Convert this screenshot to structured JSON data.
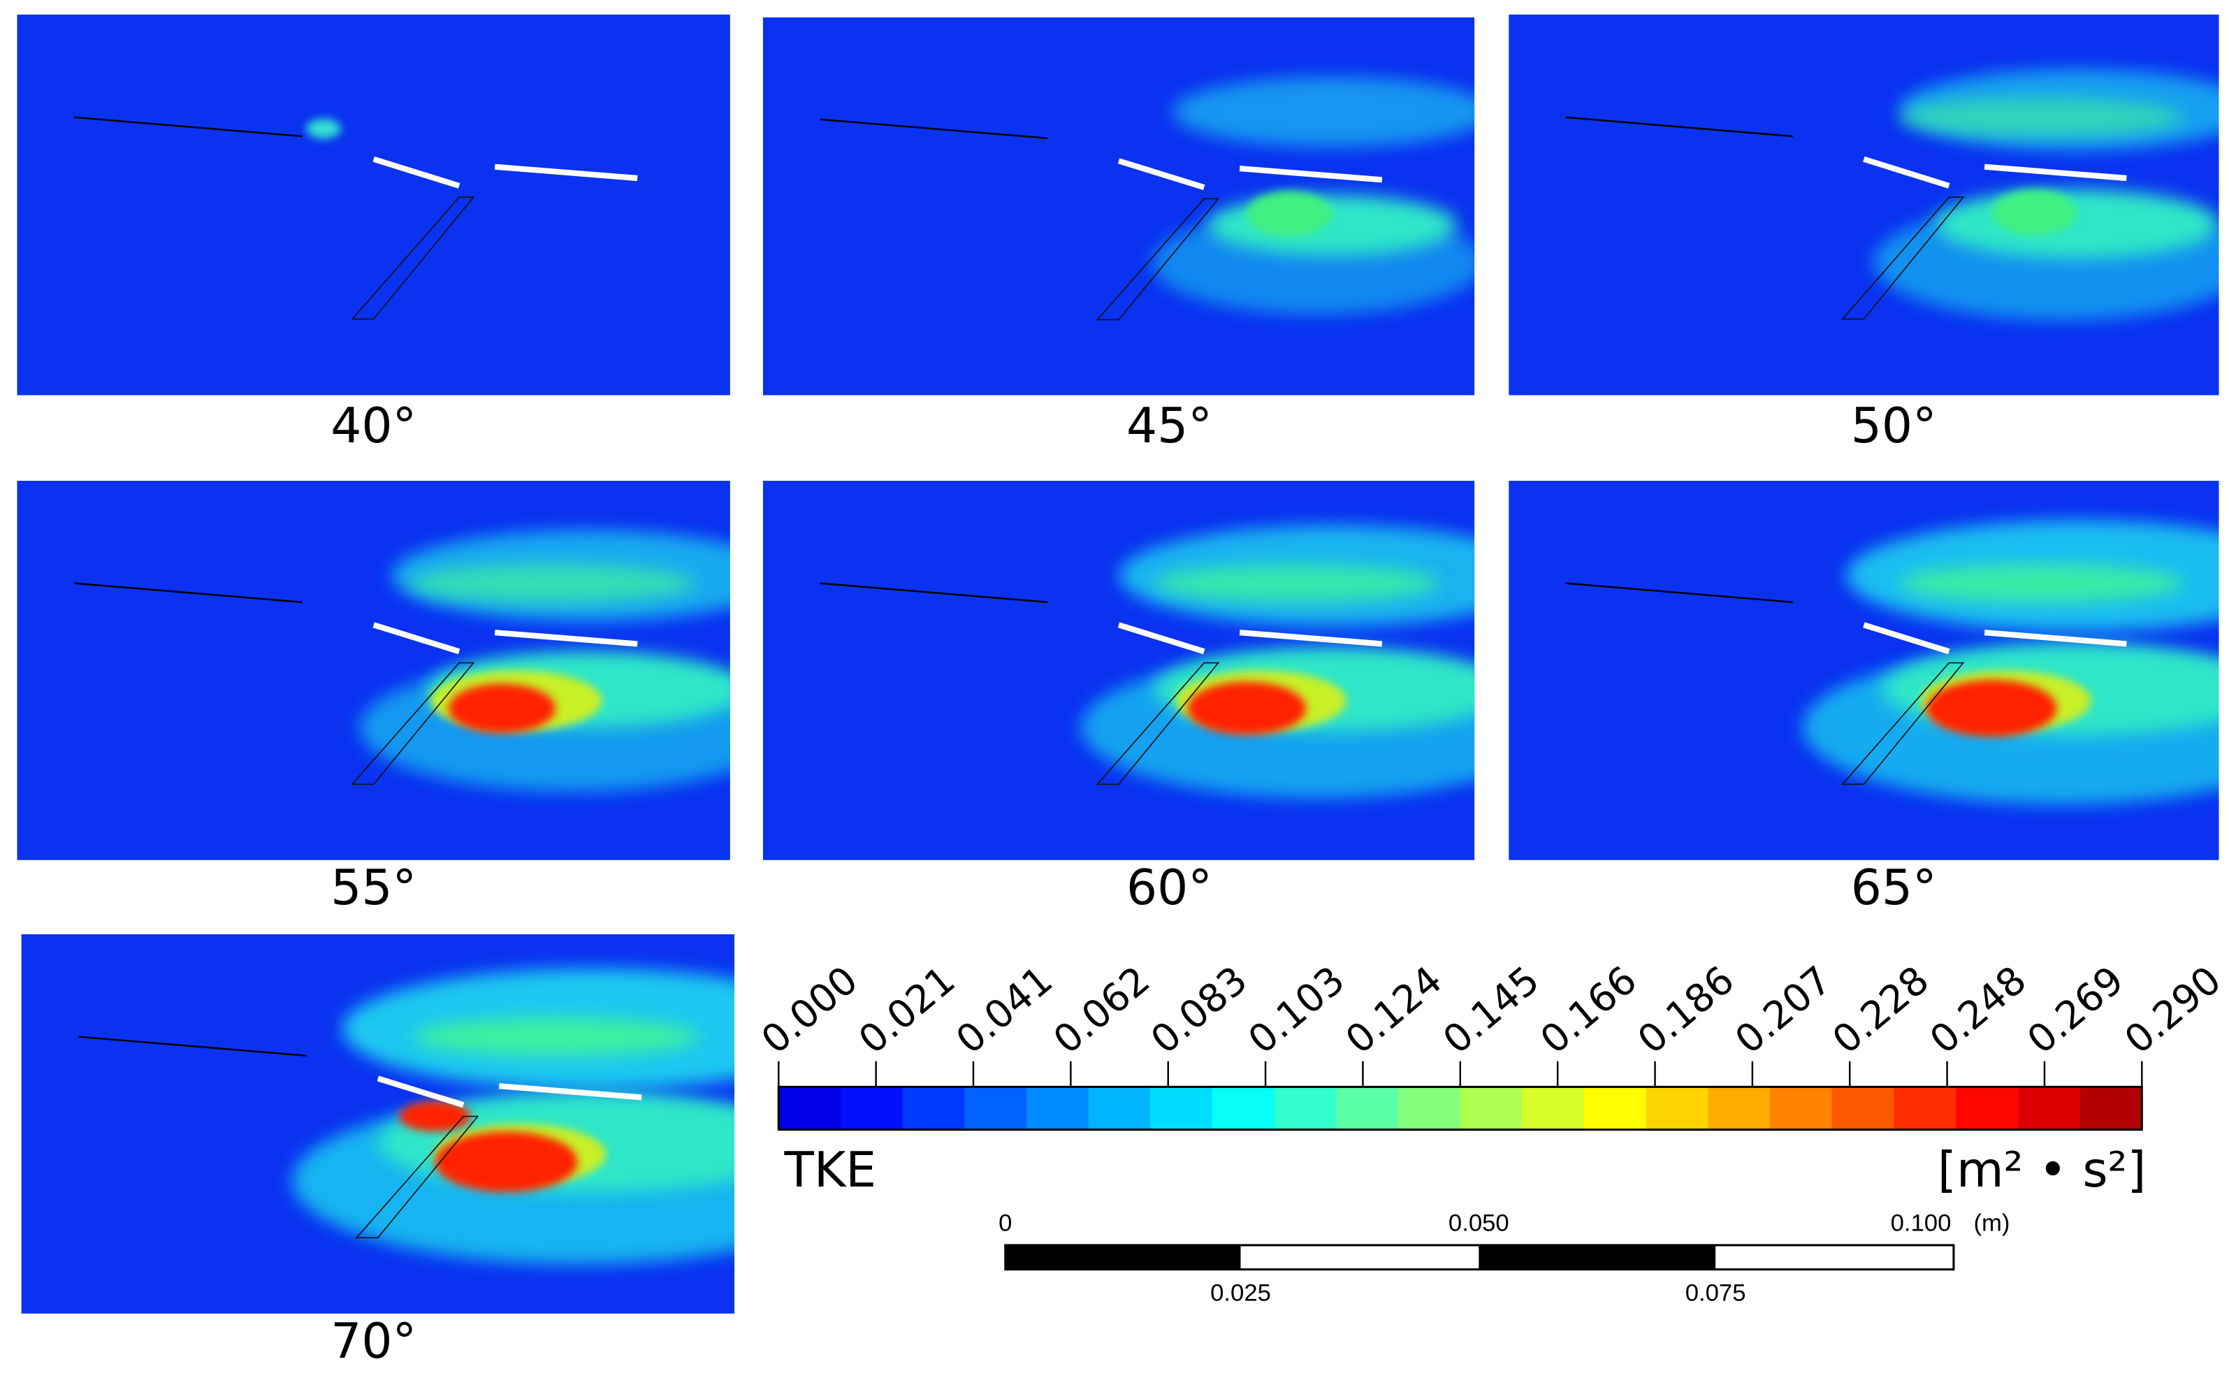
{
  "panels": [
    {
      "label": "40°"
    },
    {
      "label": "45°"
    },
    {
      "label": "50°"
    },
    {
      "label": "55°"
    },
    {
      "label": "60°"
    },
    {
      "label": "65°"
    },
    {
      "label": "70°"
    }
  ],
  "colorbar": {
    "ticks": [
      "0.000",
      "0.021",
      "0.041",
      "0.062",
      "0.083",
      "0.103",
      "0.124",
      "0.145",
      "0.166",
      "0.186",
      "0.207",
      "0.228",
      "0.248",
      "0.269",
      "0.290"
    ],
    "title": "TKE",
    "unit": "[m² • s²]"
  },
  "scalebar": {
    "top_labels": [
      "0",
      "0.050",
      "0.100"
    ],
    "unit": "(m)",
    "bottom_labels": [
      "0.025",
      "0.075"
    ]
  }
}
